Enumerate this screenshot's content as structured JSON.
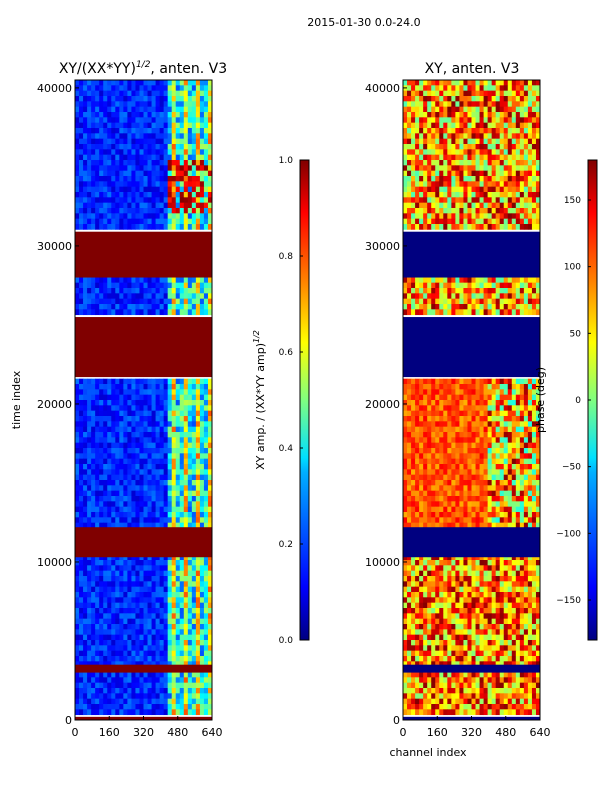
{
  "figure": {
    "suptitle": "2015-01-30 0.0-24.0"
  },
  "chart_data": [
    {
      "type": "heatmap",
      "title": "XY/(XX*YY)",
      "title_superscript": "1/2",
      "title_suffix": ", anten. V3",
      "xlabel": "",
      "ylabel": "time index",
      "xlim": [
        0,
        640
      ],
      "ylim": [
        0,
        40500
      ],
      "xticks": [
        0,
        160,
        320,
        480,
        640
      ],
      "xtick_labels": [
        "0",
        "160",
        "320",
        "480",
        "640"
      ],
      "yticks": [
        0,
        10000,
        20000,
        30000,
        40000
      ],
      "ytick_labels": [
        "0",
        "10000",
        "20000",
        "30000",
        "40000"
      ],
      "saturated_bands": [
        {
          "start": 0,
          "end": 200
        },
        {
          "start": 3000,
          "end": 3500
        },
        {
          "start": 10300,
          "end": 12200
        },
        {
          "start": 21700,
          "end": 25500
        },
        {
          "start": 28000,
          "end": 30900
        }
      ],
      "colorbar": {
        "label": "XY amp. / (XX*YY amp)",
        "label_superscript": "1/2",
        "range": [
          0.0,
          1.0
        ],
        "ticks": [
          0.0,
          0.2,
          0.4,
          0.6,
          0.8,
          1.0
        ],
        "tick_labels": [
          "0.0",
          "0.2",
          "0.4",
          "0.6",
          "0.8",
          "1.0"
        ]
      }
    },
    {
      "type": "heatmap",
      "title": "XY, anten. V3",
      "xlabel": "channel index",
      "ylabel": "",
      "xlim": [
        0,
        640
      ],
      "ylim": [
        0,
        40500
      ],
      "xticks": [
        0,
        160,
        320,
        480,
        640
      ],
      "xtick_labels": [
        "0",
        "160",
        "320",
        "480",
        "640"
      ],
      "yticks": [
        0,
        10000,
        20000,
        30000,
        40000
      ],
      "ytick_labels": [
        "0",
        "10000",
        "20000",
        "30000",
        "40000"
      ],
      "flagged_bands": [
        {
          "start": 0,
          "end": 200
        },
        {
          "start": 3000,
          "end": 3500
        },
        {
          "start": 10300,
          "end": 12200
        },
        {
          "start": 21700,
          "end": 25500
        },
        {
          "start": 28000,
          "end": 30900
        }
      ],
      "colorbar": {
        "label": "phase (deg)",
        "range": [
          -180,
          180
        ],
        "ticks": [
          150,
          100,
          50,
          0,
          -50,
          -100,
          -150
        ],
        "tick_labels": [
          "150",
          "100",
          "50",
          "0",
          "−50",
          "−100",
          "−150"
        ]
      }
    }
  ],
  "colors": {
    "jet": [
      "#000080",
      "#0000ff",
      "#0080ff",
      "#00ffff",
      "#80ff80",
      "#ffff00",
      "#ff8000",
      "#ff0000",
      "#800000"
    ]
  }
}
